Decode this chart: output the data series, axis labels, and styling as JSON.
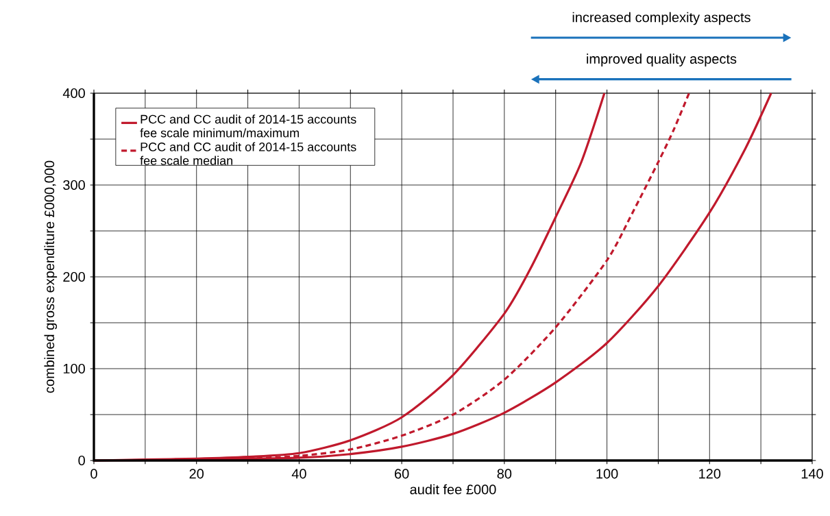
{
  "chart_data": {
    "type": "line",
    "xlabel": "audit fee £000",
    "ylabel": "combined gross expenditure £000,000",
    "annotations": [
      "increased complexity aspects",
      "improved quality aspects"
    ],
    "series": [
      {
        "name": "PCC and CC audit of 2014-15 accounts fee scale minimum/maximum",
        "color": "#c0192c",
        "line_style": "solid",
        "x": [
          0,
          10,
          20,
          30,
          40,
          50,
          60,
          70,
          80,
          85,
          90,
          95,
          99.5
        ],
        "values": [
          0,
          1,
          2,
          4,
          8,
          22,
          47,
          93,
          160,
          208,
          265,
          325,
          400
        ]
      },
      {
        "color": "#c0192c",
        "line_style": "solid",
        "x": [
          0,
          20,
          40,
          50,
          60,
          70,
          80,
          90,
          100,
          110,
          120,
          127,
          132
        ],
        "values": [
          0,
          1,
          3,
          7,
          15,
          29,
          52,
          85,
          128,
          190,
          270,
          340,
          400
        ]
      },
      {
        "name": "PCC and CC audit of 2014-15 accounts fee scale median",
        "color": "#c0192c",
        "line_style": "dashed",
        "x": [
          30,
          40,
          50,
          60,
          70,
          80,
          90,
          100,
          105,
          110,
          113,
          116
        ],
        "values": [
          2,
          5,
          12,
          27,
          50,
          88,
          145,
          218,
          270,
          325,
          360,
          400
        ]
      }
    ],
    "xlim": [
      0,
      140
    ],
    "ylim": [
      0,
      400
    ],
    "xticks": [
      0,
      {
        "value": 10,
        "label": null
      },
      20,
      {
        "value": 30,
        "label": null
      },
      40,
      {
        "value": 50,
        "label": null
      },
      60,
      {
        "value": 70,
        "label": null
      },
      80,
      {
        "value": 90,
        "label": null
      },
      100,
      {
        "value": 110,
        "label": null
      },
      120,
      {
        "value": 130,
        "label": null
      },
      140
    ],
    "yticks": [
      0,
      {
        "value": 50,
        "label": null
      },
      100,
      {
        "value": 150,
        "label": null
      },
      200,
      {
        "value": 250,
        "label": null
      },
      300,
      {
        "value": 350,
        "label": null
      },
      400
    ],
    "grid": true,
    "legend": "top left",
    "marker": "none"
  }
}
